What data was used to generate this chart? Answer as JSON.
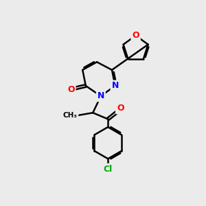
{
  "bg_color": "#ebebeb",
  "atom_colors": {
    "O": "#ff0000",
    "N": "#0000ff",
    "Cl": "#00aa00",
    "C": "#000000"
  },
  "bond_color": "#000000",
  "bond_lw": 1.8,
  "doff": 0.08
}
